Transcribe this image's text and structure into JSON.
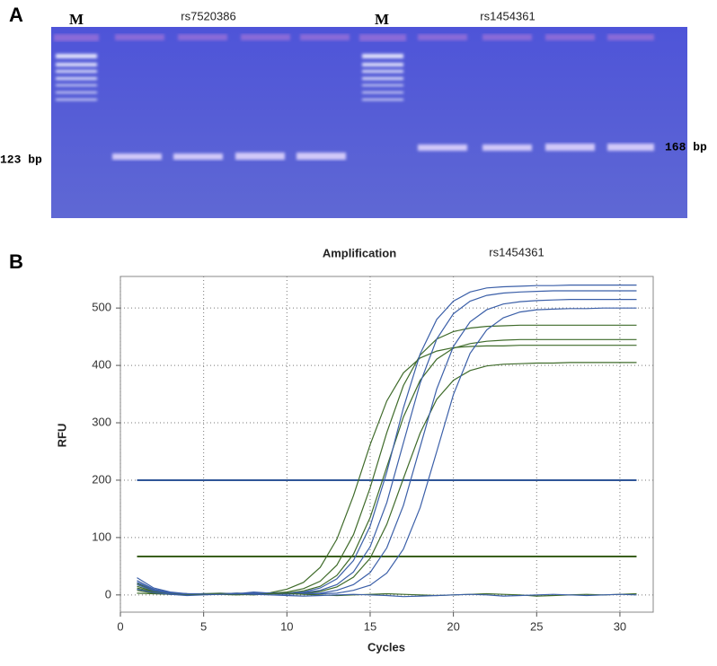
{
  "panel_a": {
    "label": "A",
    "lanes": [
      "M",
      "rs7520386",
      "M",
      "rs1454361"
    ],
    "size_left": "123 bp",
    "size_right": "168 bp"
  },
  "chart_data": {
    "type": "line",
    "panel_label": "B",
    "title": "Amplification",
    "subtitle": "rs1454361",
    "x_label": "Cycles",
    "y_label": "RFU",
    "x": [
      1,
      2,
      3,
      4,
      5,
      6,
      7,
      8,
      9,
      10,
      11,
      12,
      13,
      14,
      15,
      16,
      17,
      18,
      19,
      20,
      21,
      22,
      23,
      24,
      25,
      26,
      27,
      28,
      29,
      30,
      31
    ],
    "series": [
      {
        "color": "#3f6b2a",
        "values": [
          12,
          5,
          2,
          1,
          2,
          3,
          2,
          2,
          4,
          10,
          22,
          48,
          97,
          173,
          262,
          338,
          387,
          413,
          425,
          431,
          433,
          434,
          434,
          435,
          435,
          435,
          435,
          435,
          435,
          435,
          435
        ]
      },
      {
        "color": "#3f6b2a",
        "values": [
          8,
          3,
          1,
          2,
          1,
          2,
          3,
          2,
          3,
          5,
          11,
          24,
          52,
          105,
          187,
          283,
          365,
          418,
          446,
          459,
          465,
          468,
          469,
          470,
          470,
          470,
          470,
          470,
          470,
          470,
          470
        ]
      },
      {
        "color": "#3f6b2a",
        "values": [
          15,
          6,
          2,
          0,
          1,
          2,
          1,
          2,
          2,
          3,
          7,
          15,
          34,
          71,
          135,
          223,
          310,
          374,
          411,
          430,
          438,
          442,
          444,
          445,
          445,
          445,
          445,
          445,
          445,
          445,
          445
        ]
      },
      {
        "color": "#3f6b2a",
        "values": [
          20,
          8,
          3,
          1,
          2,
          1,
          0,
          1,
          2,
          2,
          3,
          6,
          14,
          31,
          64,
          123,
          203,
          282,
          341,
          374,
          391,
          399,
          402,
          403,
          404,
          404,
          405,
          405,
          405,
          405,
          405
        ]
      },
      {
        "color": "#3b5fa8",
        "values": [
          25,
          10,
          4,
          2,
          1,
          2,
          3,
          2,
          3,
          3,
          5,
          12,
          28,
          60,
          120,
          214,
          326,
          420,
          480,
          512,
          528,
          535,
          537,
          538,
          539,
          539,
          540,
          540,
          540,
          540,
          540
        ]
      },
      {
        "color": "#3b5fa8",
        "values": [
          18,
          7,
          3,
          2,
          2,
          1,
          2,
          3,
          2,
          3,
          4,
          8,
          18,
          40,
          84,
          161,
          265,
          369,
          446,
          490,
          512,
          522,
          526,
          528,
          529,
          530,
          530,
          530,
          530,
          530,
          530
        ]
      },
      {
        "color": "#3b5fa8",
        "values": [
          30,
          12,
          5,
          2,
          1,
          2,
          2,
          5,
          3,
          2,
          2,
          3,
          8,
          18,
          39,
          82,
          156,
          258,
          359,
          433,
          476,
          497,
          507,
          511,
          513,
          514,
          515,
          515,
          515,
          515,
          515
        ]
      },
      {
        "color": "#3b5fa8",
        "values": [
          22,
          9,
          4,
          1,
          2,
          2,
          1,
          3,
          2,
          1,
          2,
          2,
          3,
          8,
          17,
          38,
          80,
          152,
          250,
          349,
          421,
          462,
          483,
          493,
          497,
          498,
          499,
          499,
          500,
          500,
          500
        ]
      },
      {
        "color": "#3f6b2a",
        "values": [
          3,
          2,
          1,
          0,
          1,
          2,
          1,
          0,
          2,
          3,
          1,
          0,
          -1,
          0,
          1,
          2,
          1,
          0,
          -1,
          0,
          1,
          2,
          1,
          0,
          -2,
          -1,
          0,
          1,
          0,
          1,
          2
        ]
      },
      {
        "color": "#3b5fa8",
        "values": [
          10,
          4,
          1,
          -1,
          0,
          1,
          2,
          1,
          0,
          -1,
          -2,
          -1,
          0,
          1,
          0,
          -1,
          -3,
          -2,
          -1,
          0,
          1,
          0,
          -2,
          -1,
          0,
          1,
          0,
          -1,
          0,
          1,
          0
        ]
      }
    ],
    "thresholds": [
      {
        "value": 200,
        "color": "#2f5597"
      },
      {
        "value": 67,
        "color": "#3a5f1a"
      }
    ],
    "xlim": [
      0,
      32
    ],
    "ylim": [
      -30,
      555
    ],
    "xticks": [
      0,
      5,
      10,
      15,
      20,
      25,
      30
    ],
    "yticks": [
      0,
      100,
      200,
      300,
      400,
      500
    ],
    "grid": true
  }
}
